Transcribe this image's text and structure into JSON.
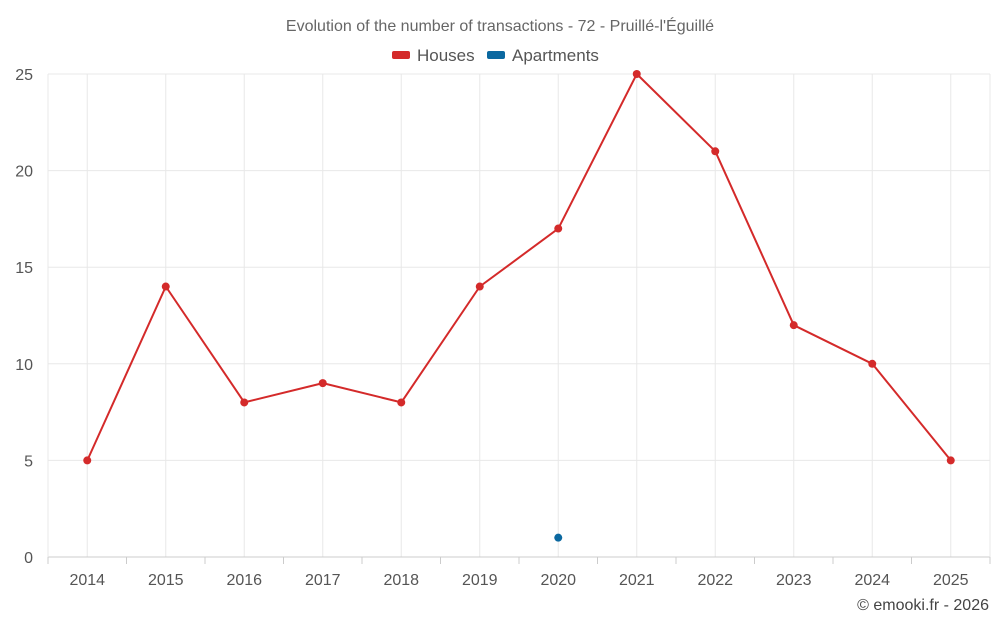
{
  "chart_data": {
    "type": "line",
    "title": "Evolution of the number of transactions - 72 - Pruillé-l'Éguillé",
    "categories": [
      "2014",
      "2015",
      "2016",
      "2017",
      "2018",
      "2019",
      "2020",
      "2021",
      "2022",
      "2023",
      "2024",
      "2025"
    ],
    "series": [
      {
        "name": "Houses",
        "color": "#d42a2a",
        "values": [
          5,
          14,
          8,
          9,
          8,
          14,
          17,
          25,
          21,
          12,
          10,
          5
        ]
      },
      {
        "name": "Apartments",
        "color": "#0b68a0",
        "values": [
          null,
          null,
          null,
          null,
          null,
          null,
          1,
          null,
          null,
          null,
          null,
          null
        ]
      }
    ],
    "ylim": [
      0,
      25
    ],
    "yticks": [
      "0",
      "5",
      "10",
      "15",
      "20",
      "25"
    ],
    "legend": "top-center",
    "grid": true,
    "xlabel": "",
    "ylabel": ""
  },
  "credit": "© emooki.fr - 2026"
}
